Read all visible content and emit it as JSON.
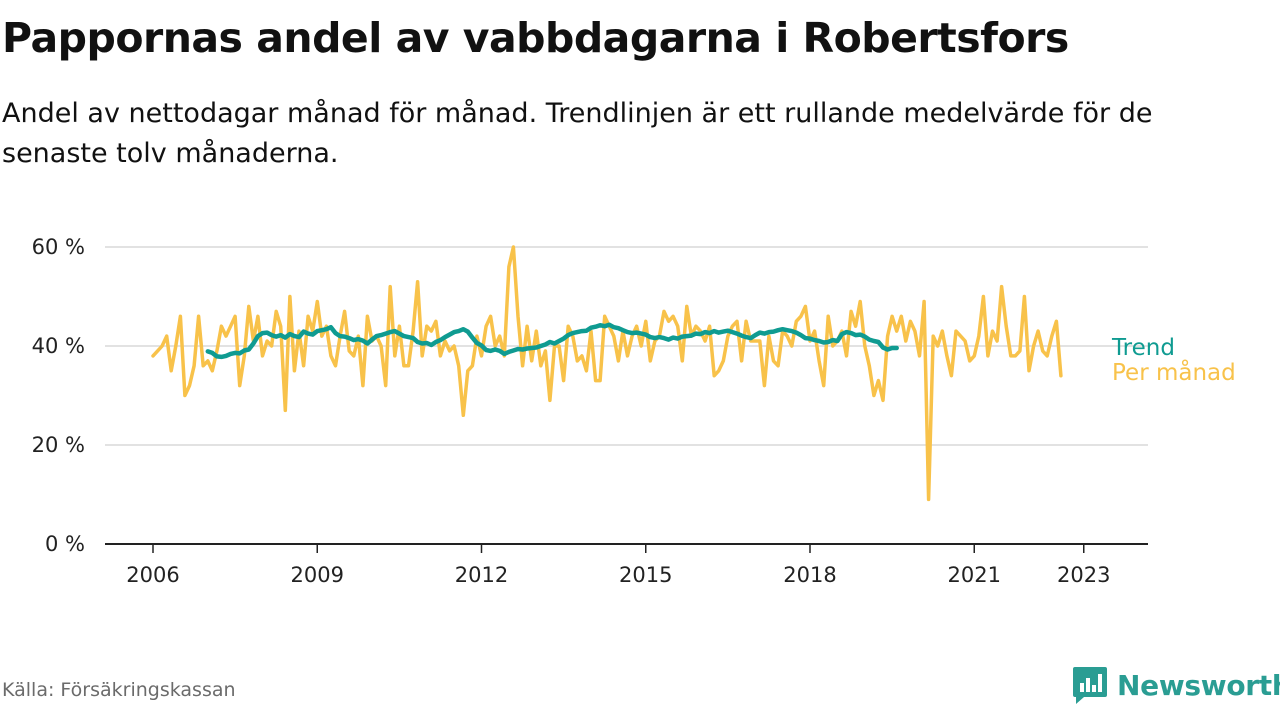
{
  "header": {
    "title": "Pappornas andel av vabbdagarna i Robertsfors",
    "subtitle": "Andel av nettodagar månad för månad. Trendlinjen är ett rullande medelvärde för de senaste tolv månaderna."
  },
  "footer": {
    "source": "Källa: Försäkringskassan",
    "brand": "Newsworthy"
  },
  "colors": {
    "trend": "#0f9b91",
    "monthly": "#f8c24a",
    "grid": "#d9d9d9",
    "axis": "#222222"
  },
  "chart_data": {
    "type": "line",
    "x_range": [
      2006.0,
      2023.3
    ],
    "ylim": [
      0,
      60
    ],
    "y_ticks": [
      {
        "value": 0,
        "label": "0 %"
      },
      {
        "value": 20,
        "label": "20 %"
      },
      {
        "value": 40,
        "label": "40 %"
      },
      {
        "value": 60,
        "label": "60 %"
      }
    ],
    "x_ticks": [
      "2006",
      "2009",
      "2012",
      "2015",
      "2018",
      "2021",
      "2023"
    ],
    "grid": true,
    "series_labels": {
      "trend": "Trend",
      "monthly": "Per månad"
    },
    "series": [
      {
        "name": "Per månad",
        "start": "2006-01",
        "values": [
          38,
          39,
          40,
          42,
          35,
          40,
          46,
          30,
          32,
          36,
          46,
          36,
          37,
          35,
          39,
          44,
          42,
          44,
          46,
          32,
          38,
          48,
          41,
          46,
          38,
          41,
          40,
          47,
          44,
          27,
          50,
          35,
          43,
          36,
          46,
          43,
          49,
          42,
          44,
          38,
          36,
          42,
          47,
          39,
          38,
          42,
          32,
          46,
          41,
          42,
          40,
          32,
          52,
          38,
          44,
          36,
          36,
          43,
          53,
          38,
          44,
          43,
          45,
          38,
          41,
          39,
          40,
          36,
          26,
          35,
          36,
          42,
          38,
          44,
          46,
          40,
          42,
          38,
          56,
          60,
          46,
          36,
          44,
          37,
          43,
          36,
          39,
          29,
          40,
          40,
          33,
          44,
          42,
          37,
          38,
          35,
          43,
          33,
          33,
          46,
          44,
          42,
          37,
          43,
          38,
          42,
          44,
          40,
          45,
          37,
          41,
          42,
          47,
          45,
          46,
          44,
          37,
          48,
          42,
          44,
          43,
          41,
          44,
          34,
          35,
          37,
          42,
          44,
          45,
          37,
          45,
          41,
          41,
          41,
          32,
          42,
          37,
          36,
          43,
          42,
          40,
          45,
          46,
          48,
          41,
          43,
          37,
          32,
          46,
          40,
          41,
          43,
          38,
          47,
          44,
          49,
          40,
          36,
          30,
          33,
          29,
          42,
          46,
          43,
          46,
          41,
          45,
          43,
          38,
          49,
          9,
          42,
          40,
          43,
          38,
          34,
          43,
          42,
          41,
          37,
          38,
          42,
          50,
          38,
          43,
          41,
          52,
          44,
          38,
          38,
          39,
          50,
          35,
          40,
          43,
          39,
          38,
          42,
          45,
          34
        ]
      },
      {
        "name": "Trend",
        "start": "2007-01",
        "values": [
          38.9,
          38.6,
          37.9,
          37.8,
          38.0,
          38.4,
          38.6,
          38.5,
          39.1,
          39.3,
          40.5,
          42.0,
          42.6,
          42.7,
          42.2,
          41.9,
          42.2,
          41.7,
          42.4,
          42.0,
          41.8,
          42.9,
          42.5,
          42.3,
          43.0,
          43.2,
          43.4,
          43.8,
          42.6,
          42.0,
          41.9,
          41.6,
          41.2,
          41.4,
          41.1,
          40.5,
          41.3,
          42.0,
          42.2,
          42.5,
          42.8,
          43.0,
          42.5,
          42.0,
          41.8,
          41.6,
          40.8,
          40.5,
          40.6,
          40.2,
          40.8,
          41.2,
          41.8,
          42.3,
          42.8,
          43.0,
          43.4,
          42.9,
          41.7,
          40.6,
          40.1,
          39.2,
          39.0,
          39.3,
          39.0,
          38.4,
          38.8,
          39.1,
          39.4,
          39.3,
          39.5,
          39.6,
          39.7,
          40.0,
          40.3,
          40.8,
          40.5,
          41.0,
          41.5,
          42.2,
          42.6,
          42.8,
          43.0,
          43.1,
          43.7,
          43.9,
          44.2,
          44.0,
          44.3,
          43.8,
          43.6,
          43.2,
          42.8,
          42.6,
          42.7,
          42.5,
          42.3,
          41.8,
          41.6,
          41.8,
          41.6,
          41.3,
          41.7,
          41.5,
          41.9,
          42.0,
          42.1,
          42.5,
          42.4,
          42.8,
          42.6,
          43.0,
          42.7,
          42.9,
          43.1,
          42.8,
          42.5,
          42.1,
          41.8,
          41.6,
          42.2,
          42.7,
          42.5,
          42.8,
          42.9,
          43.2,
          43.4,
          43.2,
          43.0,
          42.7,
          42.2,
          41.6,
          41.5,
          41.2,
          41.0,
          40.7,
          40.8,
          41.2,
          41.0,
          42.4,
          42.8,
          42.6,
          42.2,
          42.3,
          41.9,
          41.3,
          41.0,
          40.8,
          39.7,
          39.3,
          39.6,
          39.6
        ]
      }
    ]
  }
}
